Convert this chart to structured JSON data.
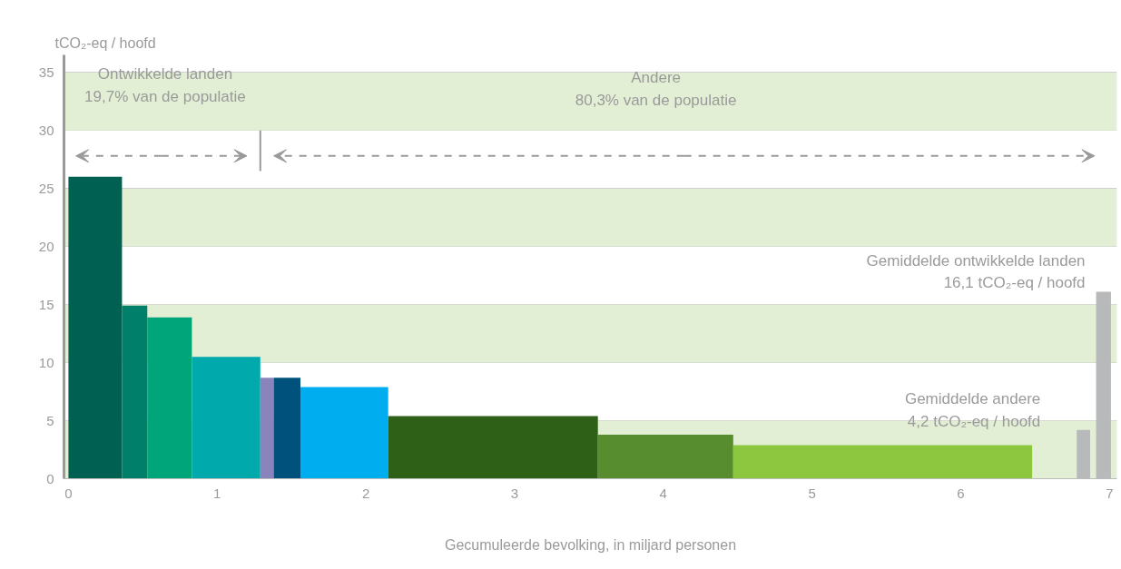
{
  "chart_data": {
    "type": "histogram",
    "ylabel": "tCO₂-eq / hoofd",
    "xlabel": "Gecumuleerde bevolking, in miljard personen",
    "bins": [
      0,
      0.36,
      0.53,
      0.83,
      1.29,
      1.38,
      1.56,
      2.15,
      3.56,
      4.47,
      6.48,
      6.78,
      6.87,
      6.91,
      7.01
    ],
    "values": [
      26.0,
      14.9,
      13.9,
      10.5,
      8.7,
      8.7,
      7.9,
      5.4,
      3.8,
      2.9,
      null,
      4.2,
      null,
      16.1
    ],
    "colors": [
      "#006152",
      "#007f6a",
      "#00a57a",
      "#00a9ac",
      "#8a84bd",
      "#00527c",
      "#00aeef",
      "#2f6017",
      "#578d2f",
      "#8dc63f",
      "#ffffff",
      "#b8b9bb",
      "#ffffff",
      "#b8b9bb"
    ],
    "xlim": [
      -0.03,
      7.05
    ],
    "xticks": [
      0,
      1,
      2,
      3,
      4,
      5,
      6,
      7
    ],
    "ylim": [
      0,
      36.5
    ],
    "yticks": [
      0,
      5,
      10,
      15,
      20,
      25,
      30,
      35
    ],
    "grid": "y",
    "bands": [
      {
        "axis": "y",
        "from": 0,
        "to": 5,
        "color": "#e3efd5"
      },
      {
        "axis": "y",
        "from": 10,
        "to": 15,
        "color": "#e3efd5"
      },
      {
        "axis": "y",
        "from": 20,
        "to": 25,
        "color": "#e3efd5"
      },
      {
        "axis": "y",
        "from": 30,
        "to": 35,
        "color": "#e3efd5"
      }
    ],
    "ref_lines": [
      {
        "axis": "x",
        "value": 1.29,
        "color": "#9a9a9a"
      }
    ],
    "annotations": [
      "Ontwikkelde landen\n19,7% van de populatie",
      "Andere\n80,3% van de populatie",
      {
        "text": "Gemiddelde ontwikkelde landen\n16,1 tCO₂-eq / hoofd",
        "x": 6.91,
        "y": 16.1
      },
      {
        "text": "Gemiddelde andere\n4,2 tCO₂-eq / hoofd",
        "x": 6.78,
        "y": 4.2
      }
    ]
  }
}
